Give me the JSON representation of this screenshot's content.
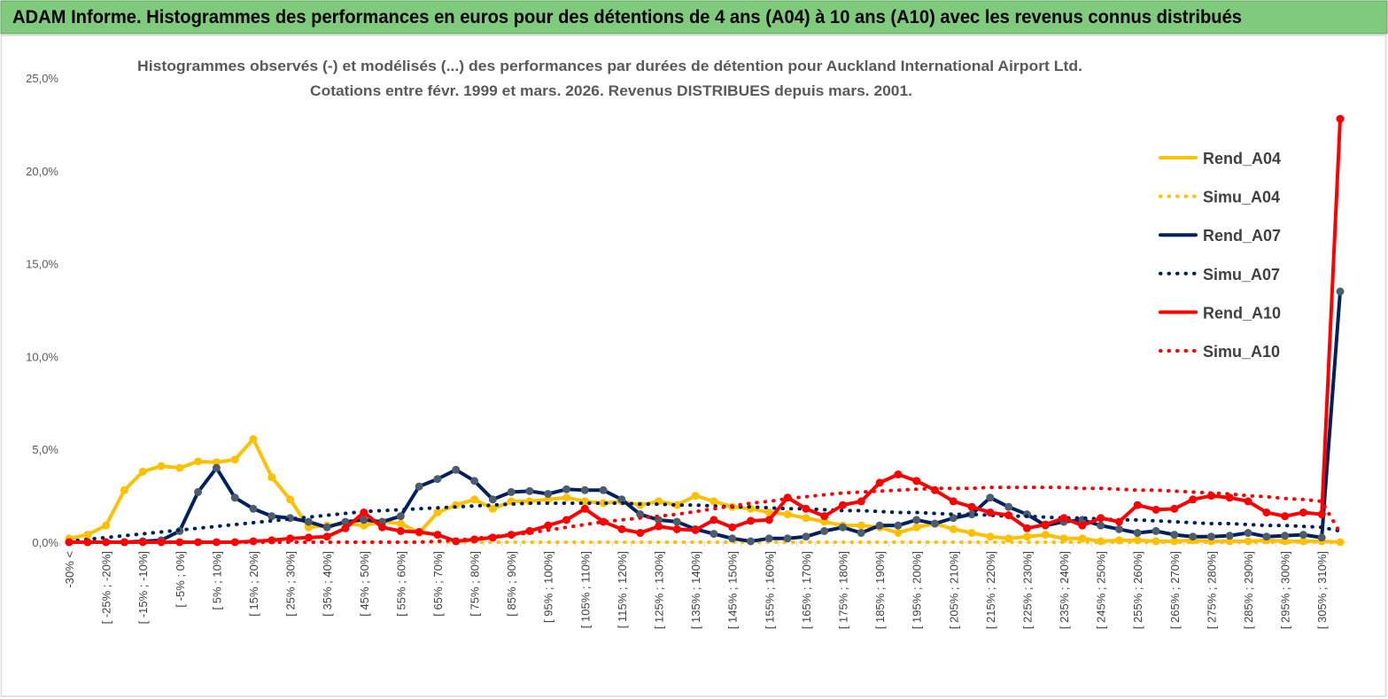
{
  "chart_data": {
    "type": "line",
    "title": "ADAM Informe. Histogrammes des performances en euros pour des détentions de 4 ans (A04) à 10 ans (A10) avec les revenus connus distribués",
    "subtitle": [
      "Histogrammes observés (-) et modélisés (...) des performances par durées de détention pour Auckland International Airport Ltd.",
      "Cotations entre févr. 1999 et mars. 2026. Revenus DISTRIBUES depuis mars. 2001."
    ],
    "categories": [
      "-30% <",
      null,
      "[ -25% ; -20%]",
      null,
      "[ -15% ; -10%]",
      null,
      "[ -5% ; 0%]",
      null,
      "[ 5% ; 10%]",
      null,
      "[ 15% ; 20%]",
      null,
      "[ 25% ; 30%]",
      null,
      "[ 35% ; 40%]",
      null,
      "[ 45% ; 50%]",
      null,
      "[ 55% ; 60%]",
      null,
      "[ 65% ; 70%]",
      null,
      "[ 75% ; 80%]",
      null,
      "[ 85% ; 90%]",
      null,
      "[ 95% ; 100%]",
      null,
      "[ 105% ; 110%]",
      null,
      "[ 115% ; 120%]",
      null,
      "[ 125% ; 130%]",
      null,
      "[ 135% ; 140%]",
      null,
      "[ 145% ; 150%]",
      null,
      "[ 155% ; 160%]",
      null,
      "[ 165% ; 170%]",
      null,
      "[ 175% ; 180%]",
      null,
      "[ 185% ; 190%]",
      null,
      "[ 195% ; 200%]",
      null,
      "[ 205% ; 210%]",
      null,
      "[ 215% ; 220%]",
      null,
      "[ 225% ; 230%]",
      null,
      "[ 235% ; 240%]",
      null,
      "[ 245% ; 250%]",
      null,
      "[ 255% ; 260%]",
      null,
      "[ 265% ; 270%]",
      null,
      "[ 275% ; 280%]",
      null,
      "[ 285% ; 290%]",
      null,
      "[ 295% ; 300%]",
      null,
      "[ 305% ; 310%]",
      null
    ],
    "series": [
      {
        "name": "Rend_A04",
        "color": "#ffc000",
        "line_style": "solid",
        "markers": true,
        "marker_color": "#ffc000",
        "values": [
          0.2,
          0.4,
          0.9,
          2.8,
          3.8,
          4.1,
          4.0,
          4.35,
          4.3,
          4.45,
          5.55,
          3.5,
          2.3,
          0.8,
          0.9,
          1.0,
          0.9,
          1.1,
          1.0,
          0.5,
          1.6,
          2.0,
          2.3,
          1.8,
          2.2,
          2.2,
          2.3,
          2.4,
          2.2,
          2.1,
          2.2,
          2.0,
          2.2,
          2.0,
          2.5,
          2.2,
          1.9,
          1.8,
          1.6,
          1.5,
          1.3,
          1.1,
          0.9,
          0.9,
          0.8,
          0.5,
          0.8,
          1.0,
          0.7,
          0.5,
          0.3,
          0.2,
          0.3,
          0.4,
          0.2,
          0.2,
          0.05,
          0.1,
          0.1,
          0.05,
          0.05,
          0.1,
          0.05,
          0.05,
          0.05,
          0.1,
          0.05,
          0.05,
          0.05,
          0
        ]
      },
      {
        "name": "Simu_A04",
        "color": "#ffc000",
        "line_style": "dotted",
        "markers": false,
        "values": [
          0,
          0,
          0,
          0,
          0,
          0,
          0,
          0,
          0,
          0,
          0,
          0,
          0,
          0,
          0,
          0,
          0,
          0,
          0,
          0,
          0,
          0,
          0,
          0,
          0,
          0,
          0,
          0,
          0,
          0,
          0,
          0,
          0,
          0,
          0,
          0,
          0,
          0,
          0,
          0,
          0,
          0,
          0,
          0,
          0,
          0,
          0,
          0,
          0,
          0,
          0,
          0,
          0,
          0,
          0,
          0,
          0,
          0,
          0,
          0,
          0,
          0,
          0,
          0,
          0,
          0,
          0,
          0,
          0,
          0
        ]
      },
      {
        "name": "Rend_A07",
        "color": "#002060",
        "line_style": "solid",
        "markers": true,
        "marker_color": "#4d5d6e",
        "values": [
          0,
          0,
          0,
          0,
          0.05,
          0.1,
          0.6,
          2.7,
          4.0,
          2.4,
          1.8,
          1.4,
          1.3,
          1.1,
          0.8,
          1.1,
          1.2,
          1.1,
          1.4,
          3.0,
          3.4,
          3.9,
          3.3,
          2.3,
          2.7,
          2.75,
          2.6,
          2.85,
          2.8,
          2.8,
          2.3,
          1.5,
          1.2,
          1.1,
          0.7,
          0.45,
          0.2,
          0.05,
          0.2,
          0.2,
          0.3,
          0.6,
          0.8,
          0.5,
          0.9,
          0.9,
          1.2,
          1.0,
          1.3,
          1.5,
          2.4,
          1.9,
          1.5,
          0.9,
          1.1,
          1.2,
          0.9,
          0.7,
          0.5,
          0.6,
          0.4,
          0.3,
          0.3,
          0.35,
          0.5,
          0.3,
          0.35,
          0.4,
          0.25,
          13.5
        ]
      },
      {
        "name": "Simu_A07",
        "color": "#002060",
        "line_style": "dotted",
        "markers": false,
        "values": [
          0.05,
          0.15,
          0.25,
          0.35,
          0.45,
          0.55,
          0.65,
          0.75,
          0.85,
          0.95,
          1.05,
          1.15,
          1.25,
          1.35,
          1.45,
          1.55,
          1.65,
          1.7,
          1.75,
          1.8,
          1.85,
          1.9,
          1.95,
          2.0,
          2.05,
          2.1,
          2.1,
          2.1,
          2.1,
          2.1,
          2.1,
          2.05,
          2.05,
          2.0,
          2.0,
          1.95,
          1.9,
          1.9,
          1.85,
          1.8,
          1.8,
          1.75,
          1.7,
          1.7,
          1.65,
          1.6,
          1.6,
          1.55,
          1.5,
          1.5,
          1.45,
          1.4,
          1.4,
          1.35,
          1.3,
          1.3,
          1.25,
          1.2,
          1.2,
          1.15,
          1.1,
          1.05,
          1.0,
          1.0,
          0.95,
          0.9,
          0.9,
          0.85,
          0.8,
          0.6
        ]
      },
      {
        "name": "Rend_A10",
        "color": "#ff0000",
        "line_style": "solid",
        "markers": true,
        "marker_color": "#ff0000",
        "values": [
          0,
          0,
          0,
          0,
          0,
          0,
          0,
          0,
          0,
          0,
          0.05,
          0.1,
          0.2,
          0.25,
          0.3,
          0.75,
          1.6,
          0.8,
          0.6,
          0.55,
          0.4,
          0.05,
          0.15,
          0.25,
          0.4,
          0.6,
          0.9,
          1.2,
          1.8,
          1.1,
          0.7,
          0.5,
          0.85,
          0.7,
          0.65,
          1.2,
          0.8,
          1.15,
          1.2,
          2.4,
          1.8,
          1.4,
          2.0,
          2.2,
          3.2,
          3.65,
          3.3,
          2.8,
          2.2,
          1.9,
          1.6,
          1.45,
          0.75,
          0.95,
          1.3,
          0.9,
          1.3,
          1.1,
          2.0,
          1.75,
          1.8,
          2.3,
          2.5,
          2.4,
          2.2,
          1.6,
          1.4,
          1.6,
          1.5,
          22.8
        ]
      },
      {
        "name": "Simu_A10",
        "color": "#ff0000",
        "line_style": "dotted",
        "markers": false,
        "values": [
          0,
          0,
          0,
          0,
          0,
          0,
          0,
          0,
          0,
          0,
          0,
          0,
          0,
          0,
          0,
          0,
          0,
          0,
          0,
          0,
          0.05,
          0.1,
          0.2,
          0.3,
          0.4,
          0.5,
          0.65,
          0.8,
          0.95,
          1.1,
          1.2,
          1.3,
          1.4,
          1.5,
          1.65,
          1.8,
          1.95,
          2.1,
          2.2,
          2.35,
          2.45,
          2.55,
          2.65,
          2.7,
          2.75,
          2.8,
          2.85,
          2.9,
          2.9,
          2.9,
          2.95,
          2.95,
          2.95,
          2.95,
          2.95,
          2.9,
          2.9,
          2.85,
          2.8,
          2.8,
          2.75,
          2.7,
          2.65,
          2.6,
          2.5,
          2.45,
          2.35,
          2.3,
          2.2,
          0.5
        ]
      }
    ],
    "ylim": [
      0,
      25
    ],
    "yticks": [
      {
        "value": 0,
        "label": "0,0%"
      },
      {
        "value": 5,
        "label": "5,0%"
      },
      {
        "value": 10,
        "label": "10,0%"
      },
      {
        "value": 15,
        "label": "15,0%"
      },
      {
        "value": 20,
        "label": "20,0%"
      },
      {
        "value": 25,
        "label": "25,0%"
      }
    ],
    "grid": false,
    "legend": "right"
  }
}
